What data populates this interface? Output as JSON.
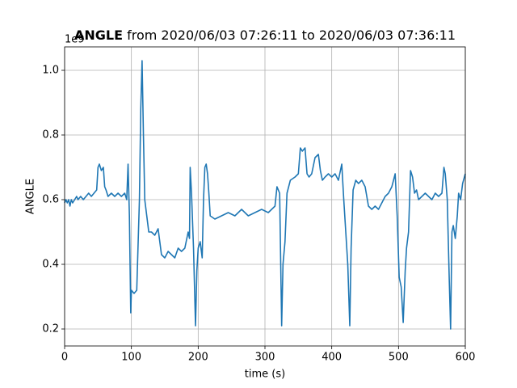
{
  "chart_data": {
    "type": "line",
    "title": {
      "bold": "ANGLE",
      "rest": "from 2020/06/03 07:26:11 to 2020/06/03 07:36:11"
    },
    "offset_label": "1e9",
    "x_label": "time (s)",
    "y_label": "ANGLE",
    "xlim": [
      0,
      600
    ],
    "xticks": [
      0,
      100,
      200,
      300,
      400,
      500,
      600
    ],
    "ylim": [
      0.1475,
      1.0725
    ],
    "yticks": [
      0.2,
      0.4,
      0.6,
      0.8,
      {
        "value": 1,
        "label": "1.0"
      }
    ],
    "grid": true,
    "series": [
      {
        "name": "ANGLE",
        "color": "#1f77b4",
        "x": [
          0,
          2,
          4,
          6,
          8,
          10,
          12,
          15,
          18,
          20,
          24,
          28,
          32,
          36,
          40,
          44,
          48,
          50,
          52,
          55,
          58,
          60,
          62,
          65,
          70,
          75,
          80,
          85,
          90,
          93,
          95,
          97,
          99,
          100,
          104,
          108,
          112,
          114,
          116,
          118,
          120,
          123,
          126,
          130,
          135,
          140,
          145,
          150,
          155,
          160,
          165,
          170,
          175,
          180,
          185,
          187,
          188,
          190,
          193,
          196,
          198,
          200,
          203,
          206,
          208,
          210,
          212,
          214,
          216,
          218,
          225,
          235,
          245,
          255,
          265,
          275,
          285,
          295,
          305,
          315,
          318,
          322,
          325,
          327,
          330,
          333,
          338,
          345,
          350,
          353,
          356,
          360,
          363,
          366,
          370,
          375,
          380,
          383,
          386,
          390,
          395,
          400,
          405,
          410,
          415,
          418,
          421,
          424,
          427,
          429,
          432,
          436,
          440,
          445,
          450,
          455,
          460,
          465,
          470,
          475,
          480,
          485,
          490,
          495,
          498,
          501,
          504,
          507,
          510,
          512,
          515,
          518,
          521,
          524,
          527,
          530,
          535,
          540,
          545,
          550,
          555,
          560,
          565,
          568,
          570,
          573,
          576,
          578,
          580,
          582,
          585,
          588,
          590,
          593,
          596,
          600
        ],
        "values": [
          0.59,
          0.6,
          0.59,
          0.6,
          0.58,
          0.6,
          0.59,
          0.6,
          0.61,
          0.6,
          0.61,
          0.6,
          0.61,
          0.62,
          0.61,
          0.62,
          0.63,
          0.7,
          0.71,
          0.69,
          0.7,
          0.64,
          0.63,
          0.61,
          0.62,
          0.61,
          0.62,
          0.61,
          0.62,
          0.6,
          0.71,
          0.55,
          0.25,
          0.32,
          0.31,
          0.32,
          0.6,
          0.88,
          1.03,
          0.8,
          0.6,
          0.55,
          0.5,
          0.5,
          0.49,
          0.51,
          0.43,
          0.42,
          0.44,
          0.43,
          0.42,
          0.45,
          0.44,
          0.45,
          0.5,
          0.48,
          0.7,
          0.62,
          0.45,
          0.21,
          0.38,
          0.45,
          0.47,
          0.42,
          0.6,
          0.7,
          0.71,
          0.68,
          0.62,
          0.55,
          0.54,
          0.55,
          0.56,
          0.55,
          0.57,
          0.55,
          0.56,
          0.57,
          0.56,
          0.58,
          0.64,
          0.62,
          0.21,
          0.4,
          0.47,
          0.62,
          0.66,
          0.67,
          0.68,
          0.76,
          0.75,
          0.76,
          0.68,
          0.67,
          0.68,
          0.73,
          0.74,
          0.69,
          0.66,
          0.67,
          0.68,
          0.67,
          0.68,
          0.66,
          0.71,
          0.6,
          0.5,
          0.4,
          0.21,
          0.45,
          0.63,
          0.66,
          0.65,
          0.66,
          0.64,
          0.58,
          0.57,
          0.58,
          0.57,
          0.59,
          0.61,
          0.62,
          0.64,
          0.68,
          0.55,
          0.36,
          0.33,
          0.22,
          0.38,
          0.45,
          0.5,
          0.69,
          0.67,
          0.62,
          0.63,
          0.6,
          0.61,
          0.62,
          0.61,
          0.6,
          0.62,
          0.61,
          0.62,
          0.7,
          0.68,
          0.6,
          0.35,
          0.2,
          0.5,
          0.52,
          0.48,
          0.55,
          0.62,
          0.6,
          0.65,
          0.68
        ]
      }
    ]
  }
}
